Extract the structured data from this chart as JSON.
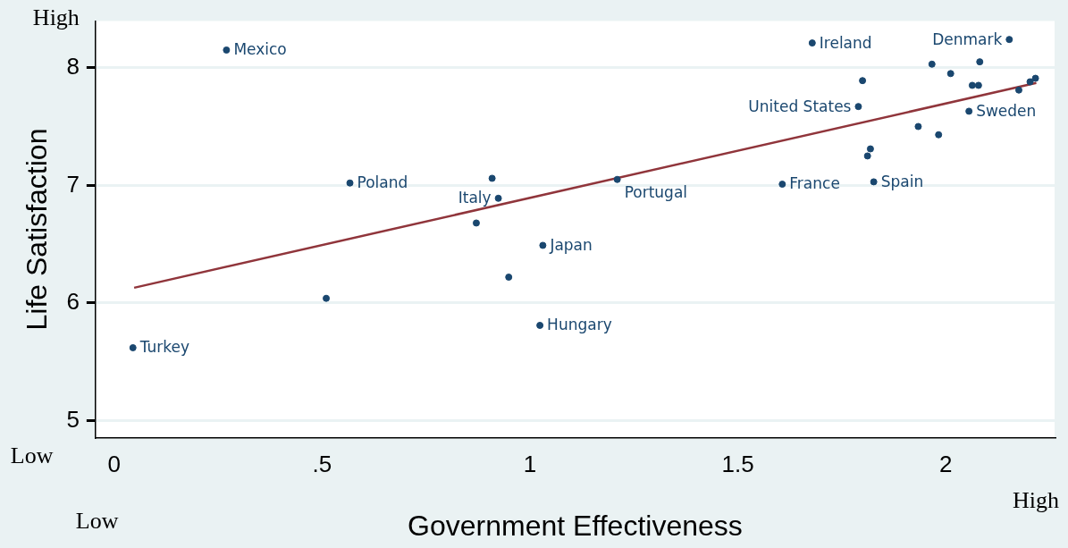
{
  "chart_data": {
    "type": "scatter",
    "xlabel": "Government Effectiveness",
    "ylabel": "Life Satisfaction",
    "xlim": [
      -0.045,
      2.262
    ],
    "ylim": [
      4.857,
      8.396
    ],
    "xticks": [
      0,
      {
        "value": 0.5,
        "label": ".5"
      },
      1,
      1.5,
      2
    ],
    "yticks": [
      5,
      6,
      7,
      8
    ],
    "grid": "y",
    "marker": "circle",
    "legend": false,
    "series": [
      {
        "color": "#1a476f",
        "x": [
          0.27,
          0.045,
          0.51,
          0.567,
          0.909,
          0.924,
          0.871,
          1.031,
          0.949,
          1.024,
          1.21,
          1.607,
          1.679,
          1.8,
          1.79,
          1.819,
          1.812,
          1.827,
          1.934,
          1.967,
          2.012,
          1.983,
          2.082,
          2.064,
          2.079,
          2.056,
          2.153,
          2.176,
          2.203,
          2.216
        ],
        "values": [
          8.15,
          5.62,
          6.04,
          7.02,
          7.06,
          6.89,
          6.68,
          6.49,
          6.22,
          5.81,
          7.05,
          7.01,
          8.21,
          7.89,
          7.67,
          7.31,
          7.25,
          7.03,
          7.5,
          8.03,
          7.95,
          7.43,
          8.05,
          7.85,
          7.85,
          7.63,
          8.24,
          7.81,
          7.88,
          7.91
        ]
      },
      {
        "type": "line",
        "marker": "none",
        "color": "#90353b",
        "x": [
          0.048,
          2.218
        ],
        "values": [
          6.13,
          7.87
        ]
      }
    ],
    "annotations": [
      "High",
      "Low",
      "Low",
      "High",
      {
        "text": "Mexico",
        "x": 0.27,
        "y": 8.15
      },
      {
        "text": "Turkey",
        "x": 0.045,
        "y": 5.62
      },
      {
        "text": "Poland",
        "x": 0.567,
        "y": 7.02
      },
      {
        "text": "Italy",
        "x": 0.924,
        "y": 6.89
      },
      {
        "text": "Japan",
        "x": 1.031,
        "y": 6.49
      },
      {
        "text": "Hungary",
        "x": 1.024,
        "y": 5.81
      },
      {
        "text": "Portugal",
        "x": 1.21,
        "y": 7.05
      },
      {
        "text": "France",
        "x": 1.607,
        "y": 7.01
      },
      {
        "text": "Ireland",
        "x": 1.679,
        "y": 8.21
      },
      {
        "text": "United States",
        "x": 1.79,
        "y": 7.67
      },
      {
        "text": "Spain",
        "x": 1.827,
        "y": 7.03
      },
      {
        "text": "Sweden",
        "x": 2.056,
        "y": 7.63
      },
      {
        "text": "Denmark",
        "x": 2.153,
        "y": 8.24
      }
    ]
  }
}
